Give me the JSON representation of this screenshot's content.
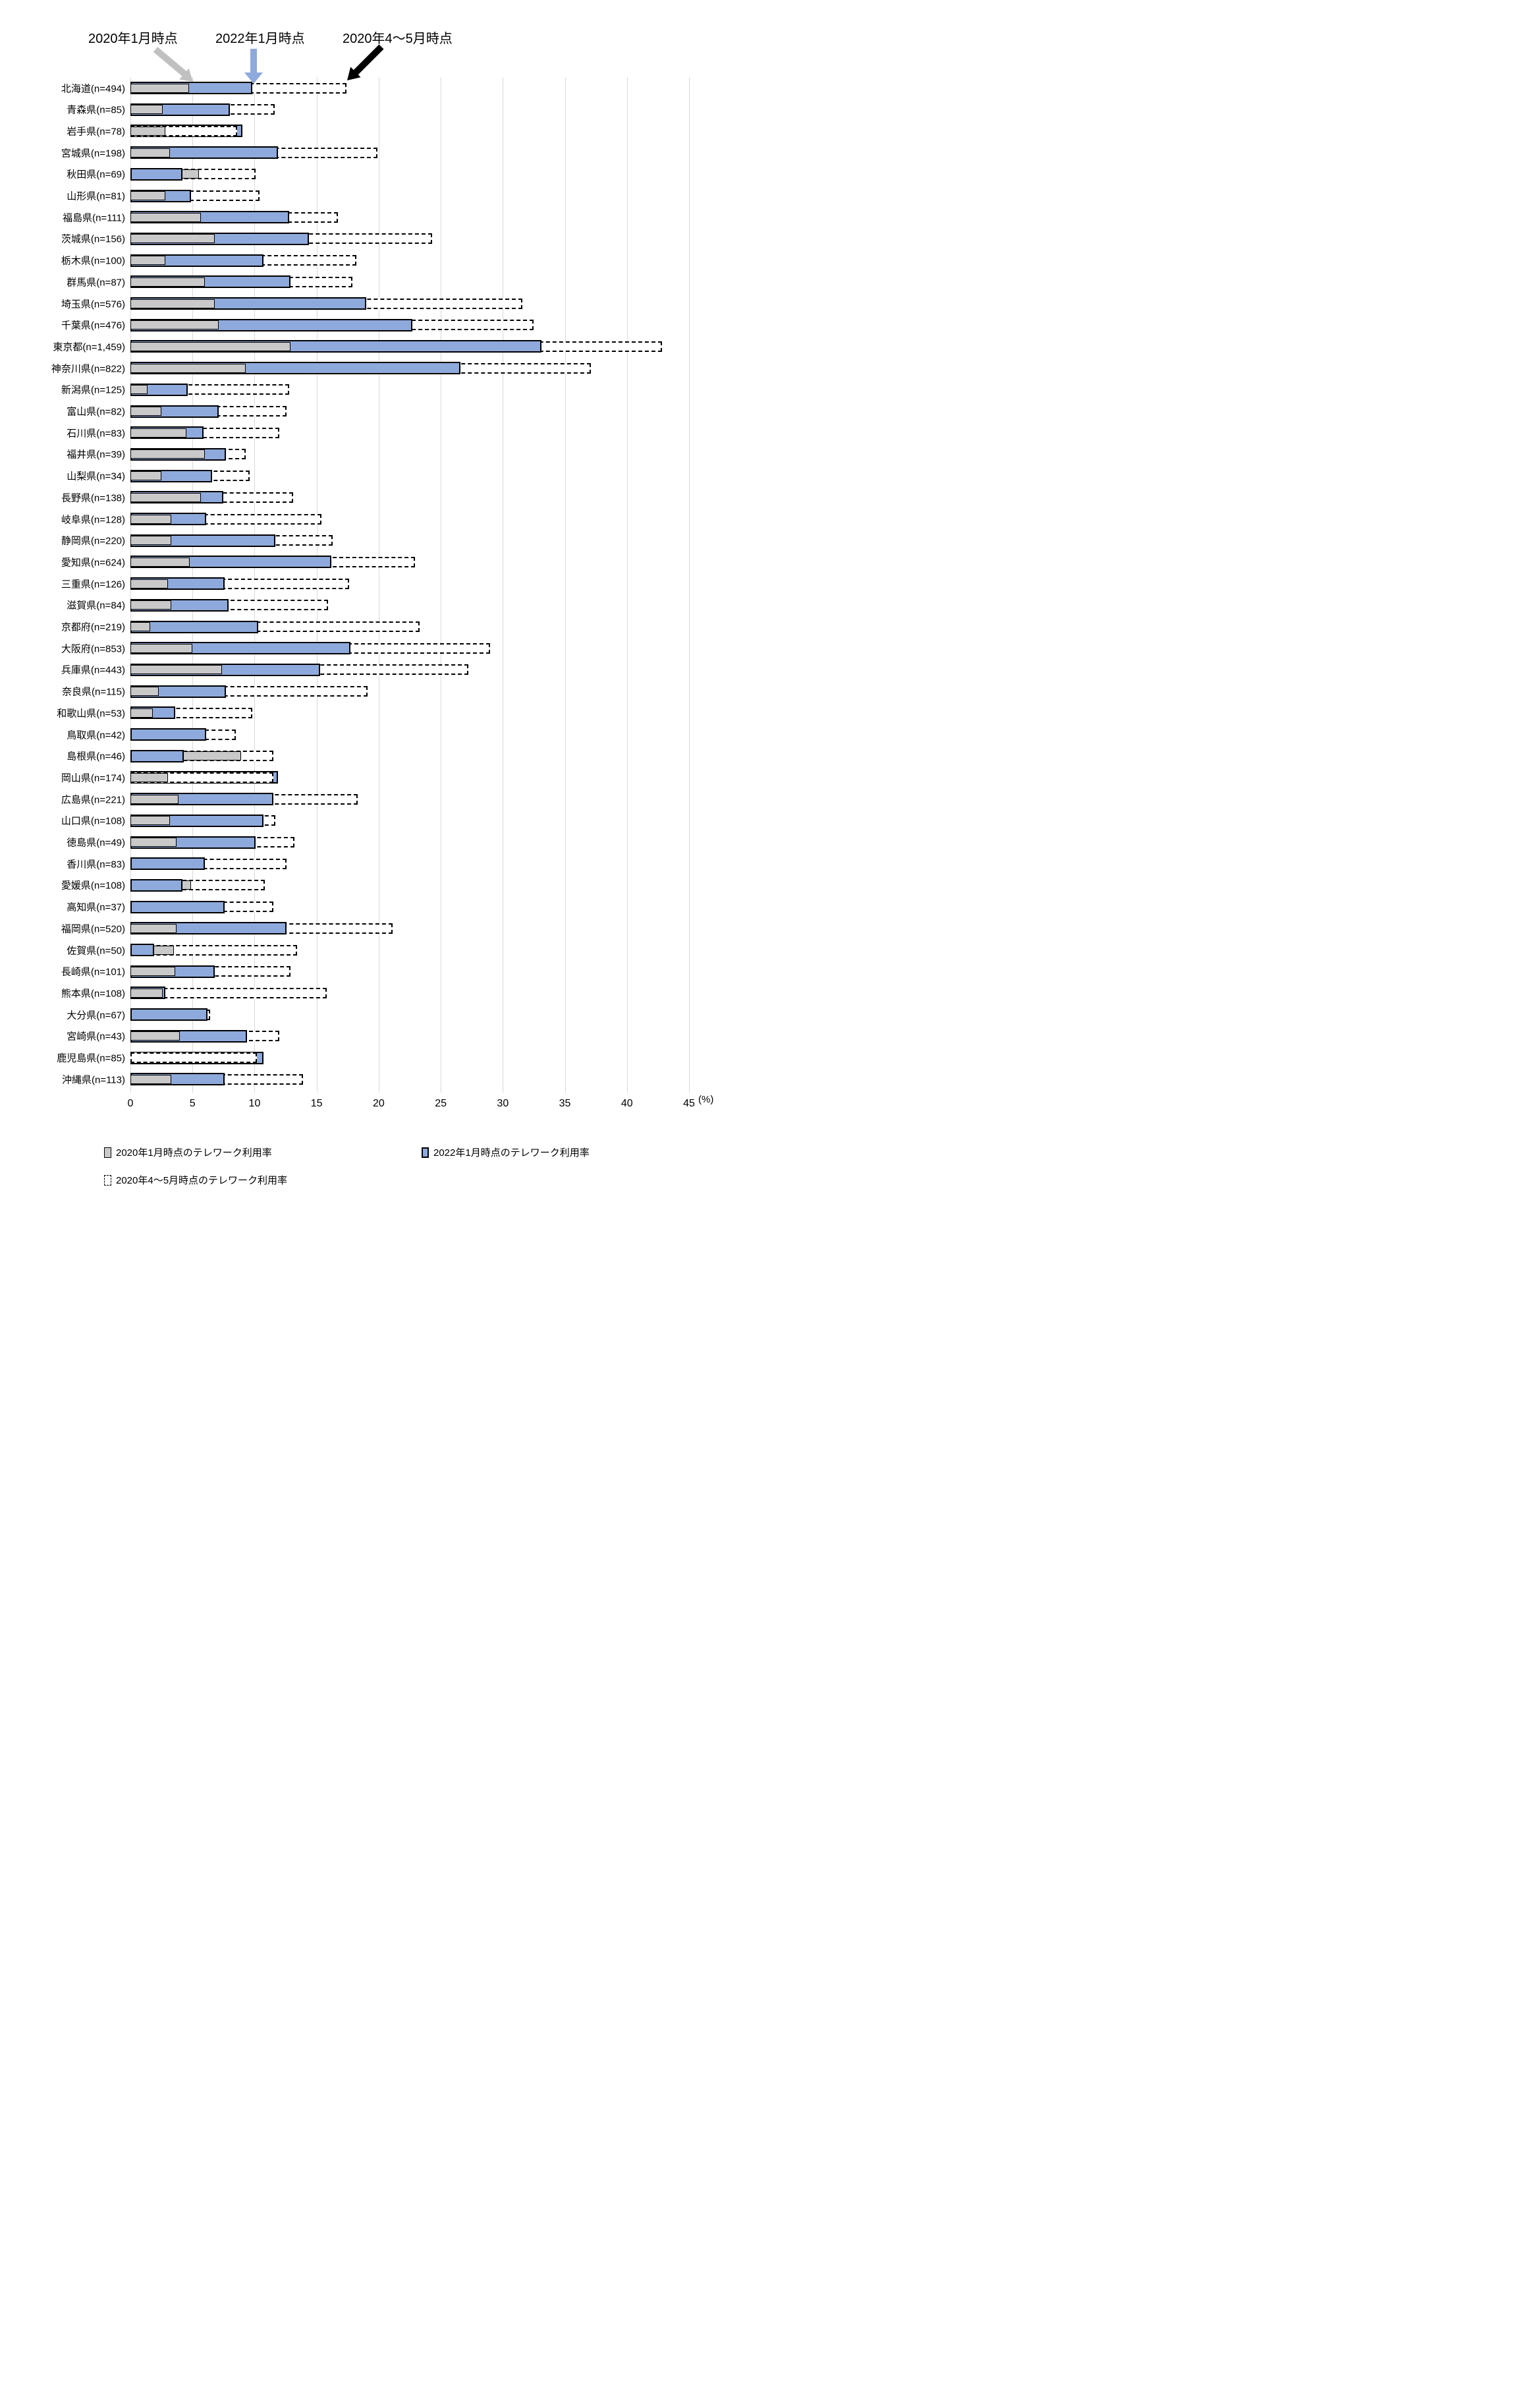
{
  "annotations": {
    "jan2020": "2020年1月時点",
    "jan2022": "2022年1月時点",
    "aprmay2020": "2020年4～5月時点"
  },
  "axis": {
    "ticks": [
      "0",
      "5",
      "10",
      "15",
      "20",
      "25",
      "30",
      "35",
      "40",
      "45"
    ],
    "unit": "(%)",
    "min": 0,
    "max": 45
  },
  "legend": {
    "items": [
      {
        "key": "gray",
        "label": "2020年1月時点のテレワーク利用率"
      },
      {
        "key": "blue",
        "label": "2022年1月時点のテレワーク利用率"
      },
      {
        "key": "dashed",
        "label": "2020年4～5月時点のテレワーク利用率"
      }
    ]
  },
  "colors": {
    "gray_fill": "#C9C9C9",
    "blue_fill": "#8EA9DB",
    "dashed_fill": "#FFFFFF",
    "border": "#000000",
    "gridline": "#D9D9D9",
    "arrow_gray": "#C0C0C0",
    "arrow_blue": "#8EA9DB",
    "arrow_black": "#000000"
  },
  "chart_data": {
    "type": "bar",
    "orientation": "horizontal",
    "xlim": [
      0,
      45
    ],
    "grid": true,
    "legend_position": "bottom",
    "categories": [
      "北海道(n=494)",
      "青森県(n=85)",
      "岩手県(n=78)",
      "宮城県(n=198)",
      "秋田県(n=69)",
      "山形県(n=81)",
      "福島県(n=111)",
      "茨城県(n=156)",
      "栃木県(n=100)",
      "群馬県(n=87)",
      "埼玉県(n=576)",
      "千葉県(n=476)",
      "東京都(n=1,459)",
      "神奈川県(n=822)",
      "新潟県(n=125)",
      "富山県(n=82)",
      "石川県(n=83)",
      "福井県(n=39)",
      "山梨県(n=34)",
      "長野県(n=138)",
      "岐阜県(n=128)",
      "静岡県(n=220)",
      "愛知県(n=624)",
      "三重県(n=126)",
      "滋賀県(n=84)",
      "京都府(n=219)",
      "大阪府(n=853)",
      "兵庫県(n=443)",
      "奈良県(n=115)",
      "和歌山県(n=53)",
      "鳥取県(n=42)",
      "島根県(n=46)",
      "岡山県(n=174)",
      "広島県(n=221)",
      "山口県(n=108)",
      "徳島県(n=49)",
      "香川県(n=83)",
      "愛媛県(n=108)",
      "高知県(n=37)",
      "福岡県(n=520)",
      "佐賀県(n=50)",
      "長崎県(n=101)",
      "熊本県(n=108)",
      "大分県(n=67)",
      "宮崎県(n=43)",
      "鹿児島県(n=85)",
      "沖縄県(n=113)"
    ],
    "series": [
      {
        "name": "2020年1月時点のテレワーク利用率",
        "style": "gray",
        "values": [
          4.7,
          2.6,
          2.8,
          3.2,
          5.5,
          2.8,
          5.7,
          6.8,
          2.8,
          6.0,
          6.8,
          7.1,
          12.9,
          9.3,
          1.4,
          2.5,
          4.5,
          6.0,
          2.5,
          5.7,
          3.3,
          3.3,
          4.8,
          3.0,
          3.3,
          1.6,
          5.0,
          7.4,
          2.3,
          1.8,
          0,
          8.9,
          3.0,
          3.9,
          3.2,
          3.7,
          0,
          4.9,
          0,
          3.7,
          3.5,
          3.6,
          2.6,
          0,
          4.0,
          0,
          3.3
        ]
      },
      {
        "name": "2022年1月時点のテレワーク利用率",
        "style": "blue",
        "values": [
          9.8,
          8.0,
          9.0,
          11.9,
          4.2,
          4.9,
          12.8,
          14.4,
          10.7,
          12.9,
          19.0,
          22.7,
          33.1,
          26.6,
          4.6,
          7.1,
          5.9,
          7.7,
          6.6,
          7.5,
          6.1,
          11.7,
          16.2,
          7.6,
          7.9,
          10.3,
          17.7,
          15.3,
          7.7,
          3.6,
          6.1,
          4.3,
          11.9,
          11.5,
          10.7,
          10.1,
          6.0,
          4.2,
          7.6,
          12.6,
          1.9,
          6.8,
          2.8,
          6.2,
          9.4,
          10.7,
          7.6
        ]
      },
      {
        "name": "2020年4～5月時点のテレワーク利用率",
        "style": "dashed",
        "values": [
          17.4,
          11.6,
          8.6,
          19.9,
          10.1,
          10.4,
          16.7,
          24.3,
          18.2,
          17.9,
          31.6,
          32.5,
          42.8,
          37.1,
          12.8,
          12.6,
          12.0,
          9.3,
          9.6,
          13.1,
          15.4,
          16.3,
          22.9,
          17.6,
          15.9,
          23.3,
          29.0,
          27.2,
          19.1,
          9.8,
          8.5,
          11.5,
          11.5,
          18.3,
          11.7,
          13.2,
          12.6,
          10.8,
          11.5,
          21.1,
          13.4,
          12.9,
          15.8,
          6.4,
          12.0,
          10.2,
          13.9
        ]
      }
    ]
  },
  "layout_note": "values in percent; larger value drawn behind, smaller in front; dashed series has opaque white fill"
}
